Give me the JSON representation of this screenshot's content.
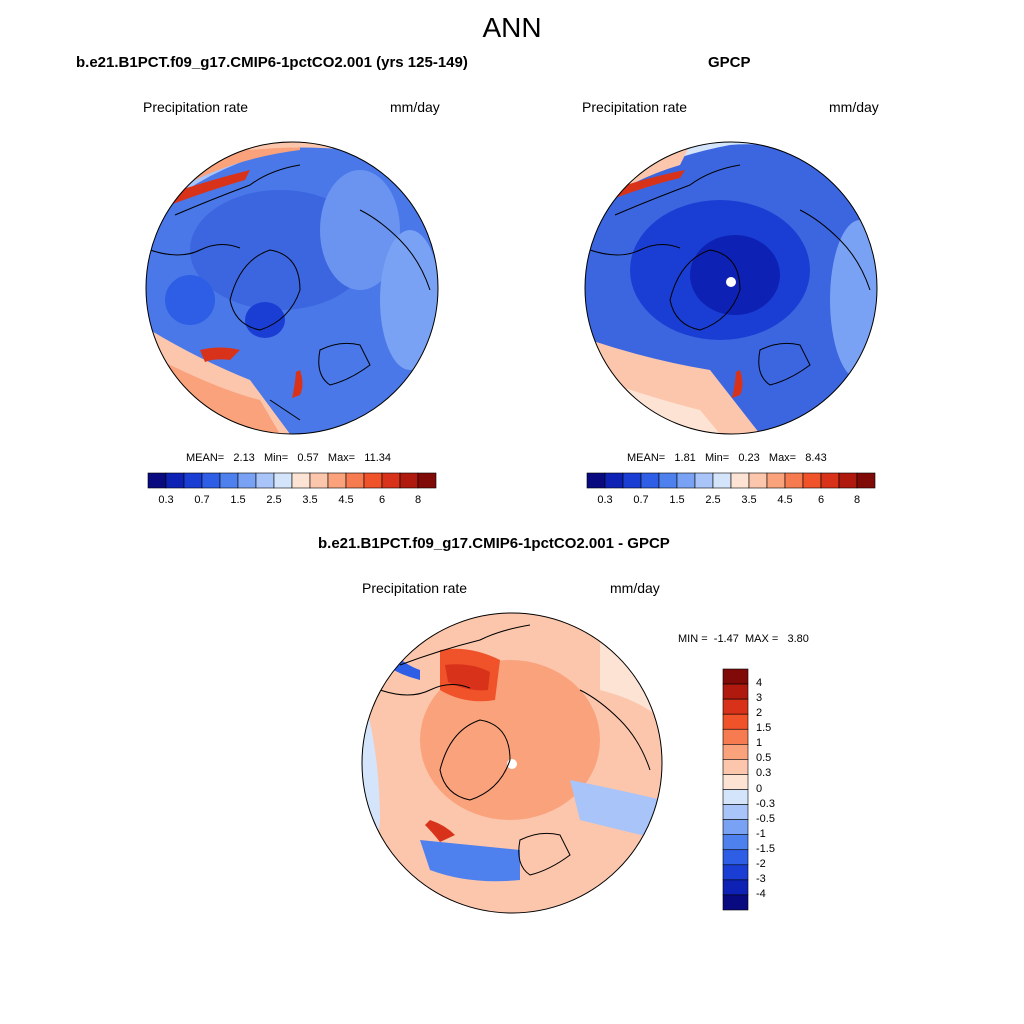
{
  "figure": {
    "main_title": "ANN",
    "panels": [
      {
        "title": "b.e21.B1PCT.f09_g17.CMIP6-1pctCO2.001 (yrs 125-149)",
        "left_label": "Precipitation rate",
        "right_label": "mm/day",
        "stats": {
          "mean_label": "MEAN=",
          "mean": "2.13",
          "min_label": "Min=",
          "min": "0.57",
          "max_label": "Max=",
          "max": "11.34"
        }
      },
      {
        "title": "GPCP",
        "left_label": "Precipitation rate",
        "right_label": "mm/day",
        "stats": {
          "mean_label": "MEAN=",
          "mean": "1.81",
          "min_label": "Min=",
          "min": "0.23",
          "max_label": "Max=",
          "max": "8.43"
        }
      },
      {
        "title": "b.e21.B1PCT.f09_g17.CMIP6-1pctCO2.001 - GPCP",
        "left_label": "Precipitation rate",
        "right_label": "mm/day",
        "minmax": {
          "min_label": "MIN =",
          "min": "-1.47",
          "max_label": "MAX =",
          "max": "3.80"
        }
      }
    ],
    "abs_colorbar": {
      "tick_labels": [
        "0.3",
        "0.7",
        "1.5",
        "2.5",
        "3.5",
        "4.5",
        "6",
        "8"
      ],
      "colors": [
        "#0a0a80",
        "#0d22b4",
        "#1a3ed4",
        "#2e5ee6",
        "#4e80ee",
        "#7aa2f4",
        "#a8c4f8",
        "#d4e4fa",
        "#fde3d4",
        "#fcc6ac",
        "#f9a27c",
        "#f67b50",
        "#f0522a",
        "#d8331a",
        "#b01a0e",
        "#800a08"
      ]
    },
    "diff_colorbar": {
      "tick_labels": [
        "4",
        "3",
        "2",
        "1.5",
        "1",
        "0.5",
        "0.3",
        "0",
        "-0.3",
        "-0.5",
        "-1",
        "-1.5",
        "-2",
        "-3",
        "-4"
      ],
      "colors": [
        "#800a08",
        "#b01a0e",
        "#d8331a",
        "#f0522a",
        "#f67b50",
        "#f9a27c",
        "#fcc6ac",
        "#fde3d4",
        "#d4e4fa",
        "#a8c4f8",
        "#7aa2f4",
        "#4e80ee",
        "#2e5ee6",
        "#1a3ed4",
        "#0d22b4",
        "#0a0a80"
      ]
    }
  }
}
